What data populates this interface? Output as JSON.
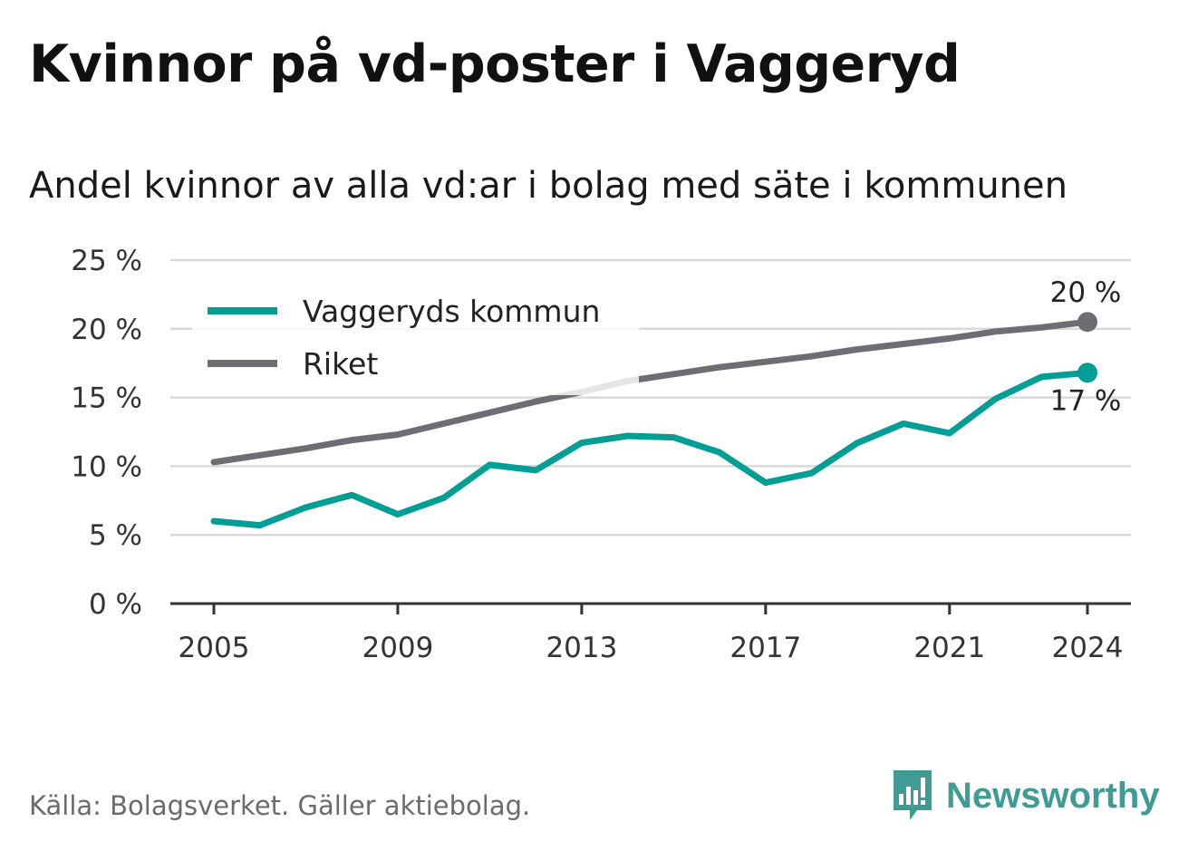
{
  "header": {
    "title": "Kvinnor på vd-poster i Vaggeryd",
    "subtitle": "Andel kvinnor av alla vd:ar i bolag med säte i kommunen"
  },
  "footer": {
    "source": "Källa: Bolagsverket. Gäller aktiebolag.",
    "brand": "Newsworthy"
  },
  "icons": {
    "brand_logo": "bar-chart-speech-bubble-icon"
  },
  "chart_data": {
    "type": "line",
    "x": [
      2005,
      2006,
      2007,
      2008,
      2009,
      2010,
      2011,
      2012,
      2013,
      2014,
      2015,
      2016,
      2017,
      2018,
      2019,
      2020,
      2021,
      2022,
      2023,
      2024
    ],
    "x_ticks": [
      "2005",
      "2009",
      "2013",
      "2017",
      "2021",
      "2024"
    ],
    "y_ticks": [
      "0 %",
      "5 %",
      "10 %",
      "15 %",
      "20 %",
      "25 %"
    ],
    "ylim": [
      0,
      25
    ],
    "grid": true,
    "legend_position": "top-left",
    "series": [
      {
        "name": "Vaggeryds kommun",
        "color": "#009e94",
        "values": [
          6.0,
          5.7,
          7.0,
          7.9,
          6.5,
          7.7,
          10.1,
          9.7,
          11.7,
          12.2,
          12.1,
          11.0,
          8.8,
          9.5,
          11.7,
          13.1,
          12.4,
          14.9,
          16.5,
          16.8
        ],
        "end_label": "17 %"
      },
      {
        "name": "Riket",
        "color": "#6e6d73",
        "values": [
          10.3,
          10.8,
          11.3,
          11.9,
          12.3,
          13.1,
          13.9,
          14.7,
          15.4,
          16.2,
          16.7,
          17.2,
          17.6,
          18.0,
          18.5,
          18.9,
          19.3,
          19.8,
          20.1,
          20.5
        ],
        "end_label": "20 %"
      }
    ]
  }
}
